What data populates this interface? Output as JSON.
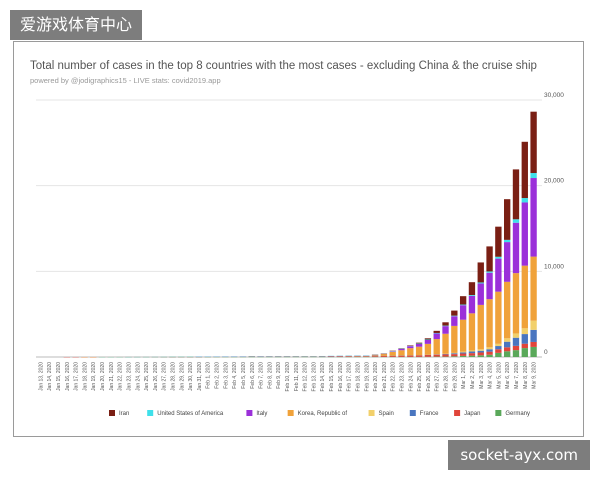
{
  "watermark_top": "爱游戏体育中心",
  "watermark_bottom": "socket-ayx.com",
  "chart_data": {
    "type": "bar",
    "stacked": true,
    "title": "Total number of cases in the top 8 countries with the most cases - excluding China & the cruise ship",
    "subtitle": "powered by @jodigraphics15 - LIVE stats: covid2019.app",
    "xlabel": "",
    "ylabel": "",
    "ylim": [
      0,
      30000
    ],
    "yticks": [
      "0",
      "10,000",
      "20,000",
      "30,000"
    ],
    "grid": true,
    "legend_position": "bottom",
    "categories": [
      "Jan 13, 2020",
      "Jan 14, 2020",
      "Jan 15, 2020",
      "Jan 16, 2020",
      "Jan 17, 2020",
      "Jan 18, 2020",
      "Jan 19, 2020",
      "Jan 20, 2020",
      "Jan 21, 2020",
      "Jan 22, 2020",
      "Jan 23, 2020",
      "Jan 24, 2020",
      "Jan 25, 2020",
      "Jan 26, 2020",
      "Jan 27, 2020",
      "Jan 28, 2020",
      "Jan 29, 2020",
      "Jan 30, 2020",
      "Jan 31, 2020",
      "Feb 1, 2020",
      "Feb 2, 2020",
      "Feb 3, 2020",
      "Feb 4, 2020",
      "Feb 5, 2020",
      "Feb 6, 2020",
      "Feb 7, 2020",
      "Feb 8, 2020",
      "Feb 9, 2020",
      "Feb 10, 2020",
      "Feb 11, 2020",
      "Feb 12, 2020",
      "Feb 13, 2020",
      "Feb 14, 2020",
      "Feb 15, 2020",
      "Feb 16, 2020",
      "Feb 17, 2020",
      "Feb 18, 2020",
      "Feb 19, 2020",
      "Feb 20, 2020",
      "Feb 21, 2020",
      "Feb 22, 2020",
      "Feb 23, 2020",
      "Feb 24, 2020",
      "Feb 25, 2020",
      "Feb 26, 2020",
      "Feb 27, 2020",
      "Feb 28, 2020",
      "Feb 29, 2020",
      "Mar 1, 2020",
      "Mar 2, 2020",
      "Mar 3, 2020",
      "Mar 4, 2020",
      "Mar 5, 2020",
      "Mar 6, 2020",
      "Mar 7, 2020",
      "Mar 8, 2020",
      "Mar 9, 2020"
    ],
    "series": [
      {
        "name": "Germany",
        "color": "#5aa85a",
        "values": [
          0,
          0,
          0,
          0,
          0,
          0,
          0,
          0,
          0,
          0,
          0,
          0,
          0,
          0,
          1,
          4,
          4,
          4,
          5,
          8,
          10,
          12,
          12,
          12,
          12,
          13,
          14,
          14,
          14,
          16,
          16,
          16,
          16,
          16,
          16,
          16,
          16,
          16,
          16,
          16,
          16,
          16,
          16,
          18,
          27,
          46,
          48,
          79,
          130,
          159,
          196,
          262,
          482,
          670,
          799,
          1040,
          1176
        ]
      },
      {
        "name": "Japan",
        "color": "#e0453a",
        "values": [
          0,
          0,
          0,
          1,
          1,
          1,
          1,
          1,
          1,
          2,
          2,
          2,
          3,
          4,
          4,
          7,
          8,
          11,
          15,
          20,
          20,
          20,
          22,
          22,
          45,
          25,
          25,
          26,
          26,
          26,
          28,
          29,
          43,
          59,
          66,
          74,
          84,
          94,
          105,
          122,
          147,
          159,
          170,
          189,
          214,
          228,
          241,
          256,
          274,
          293,
          331,
          360,
          420,
          461,
          502,
          511,
          581
        ]
      },
      {
        "name": "France",
        "color": "#4a76c0",
        "values": [
          0,
          0,
          0,
          0,
          0,
          0,
          0,
          0,
          0,
          0,
          2,
          3,
          3,
          3,
          4,
          5,
          5,
          5,
          6,
          6,
          6,
          6,
          6,
          6,
          6,
          6,
          11,
          11,
          11,
          11,
          11,
          11,
          11,
          12,
          12,
          12,
          12,
          12,
          12,
          12,
          12,
          12,
          12,
          14,
          18,
          38,
          57,
          100,
          130,
          191,
          204,
          285,
          377,
          653,
          949,
          1126,
          1412
        ]
      },
      {
        "name": "Spain",
        "color": "#f2d06b",
        "values": [
          0,
          0,
          0,
          0,
          0,
          0,
          0,
          0,
          0,
          0,
          0,
          0,
          0,
          0,
          0,
          0,
          0,
          0,
          0,
          1,
          1,
          1,
          1,
          1,
          1,
          1,
          1,
          2,
          2,
          2,
          2,
          2,
          2,
          2,
          2,
          2,
          2,
          2,
          2,
          2,
          2,
          2,
          2,
          6,
          13,
          15,
          32,
          45,
          84,
          120,
          165,
          222,
          259,
          400,
          500,
          673,
          1073
        ]
      },
      {
        "name": "Korea, Republic of",
        "color": "#f0a23a",
        "values": [
          0,
          0,
          0,
          0,
          0,
          1,
          1,
          1,
          1,
          1,
          1,
          2,
          2,
          3,
          4,
          4,
          4,
          4,
          11,
          12,
          15,
          15,
          16,
          18,
          23,
          24,
          24,
          25,
          27,
          28,
          28,
          28,
          28,
          28,
          29,
          30,
          31,
          31,
          104,
          204,
          433,
          602,
          833,
          977,
          1261,
          1766,
          2337,
          3150,
          3736,
          4335,
          5186,
          5621,
          6088,
          6593,
          7041,
          7313,
          7478
        ]
      },
      {
        "name": "Italy",
        "color": "#9b30d9",
        "values": [
          0,
          0,
          0,
          0,
          0,
          0,
          0,
          0,
          0,
          0,
          0,
          0,
          0,
          0,
          0,
          0,
          0,
          0,
          2,
          2,
          2,
          2,
          2,
          2,
          2,
          3,
          3,
          3,
          3,
          3,
          3,
          3,
          3,
          3,
          3,
          3,
          3,
          3,
          3,
          20,
          62,
          155,
          229,
          322,
          453,
          655,
          888,
          1128,
          1694,
          2036,
          2502,
          3089,
          3858,
          4636,
          5883,
          7375,
          9172
        ]
      },
      {
        "name": "United States of America",
        "color": "#3fe0ea",
        "values": [
          0,
          0,
          0,
          0,
          0,
          0,
          0,
          1,
          1,
          1,
          1,
          2,
          2,
          5,
          5,
          5,
          5,
          6,
          6,
          8,
          8,
          11,
          11,
          11,
          12,
          12,
          12,
          12,
          12,
          13,
          13,
          14,
          15,
          15,
          15,
          15,
          15,
          15,
          15,
          15,
          35,
          35,
          35,
          53,
          57,
          60,
          60,
          68,
          74,
          98,
          118,
          149,
          217,
          262,
          402,
          518,
          583
        ]
      },
      {
        "name": "Iran",
        "color": "#7a1f14",
        "values": [
          0,
          0,
          0,
          0,
          0,
          0,
          0,
          0,
          0,
          0,
          0,
          0,
          0,
          0,
          0,
          0,
          0,
          0,
          0,
          0,
          0,
          0,
          0,
          0,
          0,
          0,
          0,
          0,
          0,
          0,
          0,
          0,
          0,
          0,
          0,
          0,
          0,
          0,
          5,
          18,
          28,
          43,
          61,
          95,
          139,
          245,
          388,
          593,
          978,
          1501,
          2336,
          2922,
          3513,
          4747,
          5823,
          6566,
          7161
        ]
      }
    ],
    "legend_order": [
      "Iran",
      "United States of America",
      "Italy",
      "Korea, Republic of",
      "Spain",
      "France",
      "Japan",
      "Germany"
    ]
  }
}
